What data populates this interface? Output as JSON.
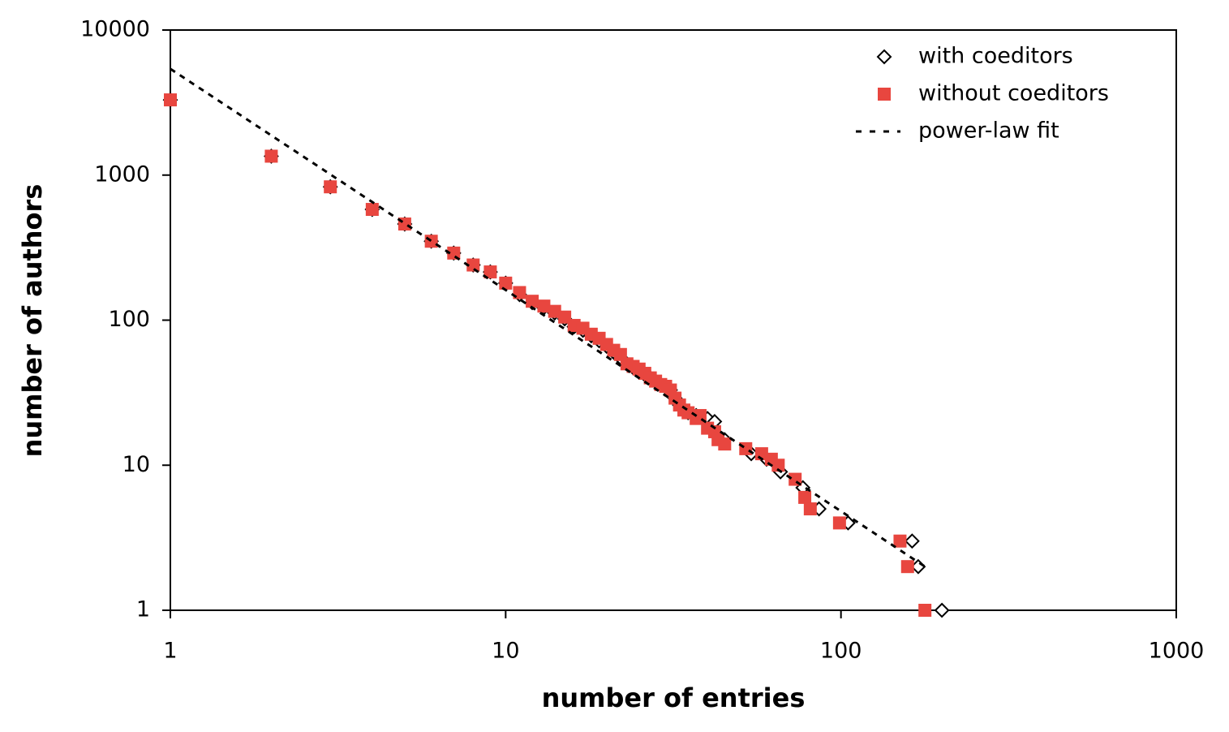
{
  "chart_data": {
    "type": "scatter",
    "x_label": "number of entries",
    "y_label": "number of authors",
    "log_x": true,
    "log_y": true,
    "xlim": [
      1,
      1000
    ],
    "ylim": [
      1,
      10000
    ],
    "xticks": [
      1,
      10,
      100,
      1000
    ],
    "yticks": [
      1,
      10,
      100,
      1000,
      10000
    ],
    "legend": "top-right",
    "series": [
      {
        "name": "with coeditors",
        "color": "#000000",
        "marker": "diamond",
        "x": [
          1,
          2,
          3,
          4,
          5,
          6,
          7,
          8,
          9,
          10,
          11,
          12,
          13,
          14,
          15,
          16,
          17,
          18,
          19,
          20,
          21,
          22,
          23,
          24,
          25,
          26,
          27,
          28,
          29,
          30,
          31,
          32,
          33,
          34,
          35,
          37,
          40,
          42,
          45,
          54,
          60,
          66,
          77,
          86,
          105,
          163,
          170,
          200
        ],
        "values": [
          3300,
          1350,
          830,
          580,
          460,
          350,
          290,
          240,
          215,
          180,
          150,
          132,
          122,
          112,
          102,
          90,
          85,
          78,
          72,
          66,
          60,
          55,
          50,
          47,
          45,
          42,
          40,
          38,
          36,
          35,
          33,
          29,
          26,
          24,
          23,
          22,
          21,
          20,
          15,
          12,
          11,
          9,
          7,
          5,
          4,
          3,
          2,
          1
        ]
      },
      {
        "name": "without coeditors",
        "color": "#e8463f",
        "marker": "square",
        "x": [
          1,
          2,
          3,
          4,
          5,
          6,
          7,
          8,
          9,
          10,
          11,
          12,
          13,
          14,
          15,
          16,
          17,
          18,
          19,
          20,
          21,
          22,
          23,
          24,
          25,
          26,
          27,
          28,
          29,
          30,
          31,
          32,
          33,
          34,
          35,
          37,
          38,
          40,
          42,
          43,
          45,
          52,
          58,
          62,
          65,
          73,
          78,
          81,
          99,
          150,
          158,
          178
        ],
        "values": [
          3300,
          1350,
          830,
          580,
          460,
          350,
          290,
          240,
          215,
          180,
          155,
          135,
          125,
          115,
          105,
          92,
          88,
          80,
          75,
          68,
          62,
          58,
          50,
          48,
          46,
          43,
          40,
          38,
          36,
          35,
          33,
          29,
          26,
          24,
          23,
          21,
          22,
          18,
          17,
          15,
          14,
          13,
          12,
          11,
          10,
          8,
          6,
          5,
          4,
          3,
          2,
          1
        ]
      },
      {
        "name": "power-law fit",
        "color": "#000000",
        "marker": "none",
        "dash": true,
        "x": [
          1,
          178
        ],
        "values": [
          5400,
          2
        ]
      }
    ]
  }
}
